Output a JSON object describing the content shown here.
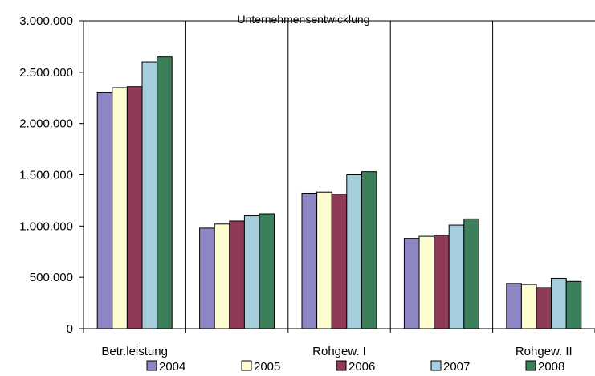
{
  "chart_data": {
    "type": "bar",
    "title": "Unternehmensentwicklung",
    "categories": [
      "Betr.leistung",
      "",
      "Rohgew. I",
      "",
      "Rohgew. II"
    ],
    "ylim": [
      0,
      3000000
    ],
    "yticks": [
      0,
      500000,
      1000000,
      1500000,
      2000000,
      2500000,
      3000000
    ],
    "ytick_labels": [
      "0",
      "500.000",
      "1.000.000",
      "1.500.000",
      "2.000.000",
      "2.500.000",
      "3.000.000"
    ],
    "grid": true,
    "legend_position": "bottom",
    "series": [
      {
        "name": "2004",
        "color": "#8c86c5",
        "values": [
          2300000,
          980000,
          1320000,
          880000,
          440000
        ]
      },
      {
        "name": "2005",
        "color": "#fdfdd0",
        "values": [
          2350000,
          1020000,
          1330000,
          900000,
          430000
        ]
      },
      {
        "name": "2006",
        "color": "#8f3a56",
        "values": [
          2360000,
          1050000,
          1310000,
          910000,
          400000
        ]
      },
      {
        "name": "2007",
        "color": "#a5cfdc",
        "values": [
          2600000,
          1100000,
          1500000,
          1010000,
          490000
        ]
      },
      {
        "name": "2008",
        "color": "#3c7f5b",
        "values": [
          2650000,
          1120000,
          1530000,
          1070000,
          460000
        ]
      }
    ]
  }
}
